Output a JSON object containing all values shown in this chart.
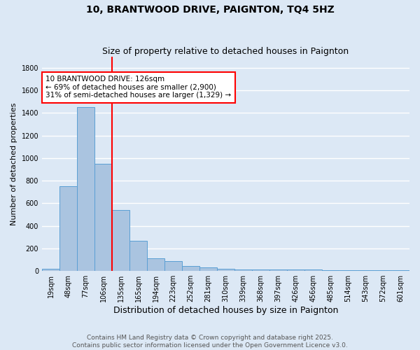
{
  "title": "10, BRANTWOOD DRIVE, PAIGNTON, TQ4 5HZ",
  "subtitle": "Size of property relative to detached houses in Paignton",
  "xlabel": "Distribution of detached houses by size in Paignton",
  "ylabel": "Number of detached properties",
  "categories": [
    "19sqm",
    "48sqm",
    "77sqm",
    "106sqm",
    "135sqm",
    "165sqm",
    "194sqm",
    "223sqm",
    "252sqm",
    "281sqm",
    "310sqm",
    "339sqm",
    "368sqm",
    "397sqm",
    "426sqm",
    "456sqm",
    "485sqm",
    "514sqm",
    "543sqm",
    "572sqm",
    "601sqm"
  ],
  "values": [
    20,
    750,
    1450,
    950,
    540,
    265,
    110,
    90,
    45,
    30,
    20,
    10,
    10,
    15,
    10,
    10,
    5,
    5,
    5,
    5,
    5
  ],
  "bar_color": "#aac4e0",
  "bar_edge_color": "#5a9fd4",
  "vline_x": 3.5,
  "vline_color": "red",
  "annotation_text": "10 BRANTWOOD DRIVE: 126sqm\n← 69% of detached houses are smaller (2,900)\n31% of semi-detached houses are larger (1,329) →",
  "annotation_box_color": "white",
  "annotation_box_edge_color": "red",
  "ylim": [
    0,
    1900
  ],
  "yticks": [
    0,
    200,
    400,
    600,
    800,
    1000,
    1200,
    1400,
    1600,
    1800
  ],
  "background_color": "#dce8f5",
  "plot_background": "#dce8f5",
  "grid_color": "white",
  "footer_line1": "Contains HM Land Registry data © Crown copyright and database right 2025.",
  "footer_line2": "Contains public sector information licensed under the Open Government Licence v3.0.",
  "title_fontsize": 10,
  "subtitle_fontsize": 9,
  "xlabel_fontsize": 9,
  "ylabel_fontsize": 8,
  "tick_fontsize": 7,
  "footer_fontsize": 6.5,
  "annotation_fontsize": 7.5
}
